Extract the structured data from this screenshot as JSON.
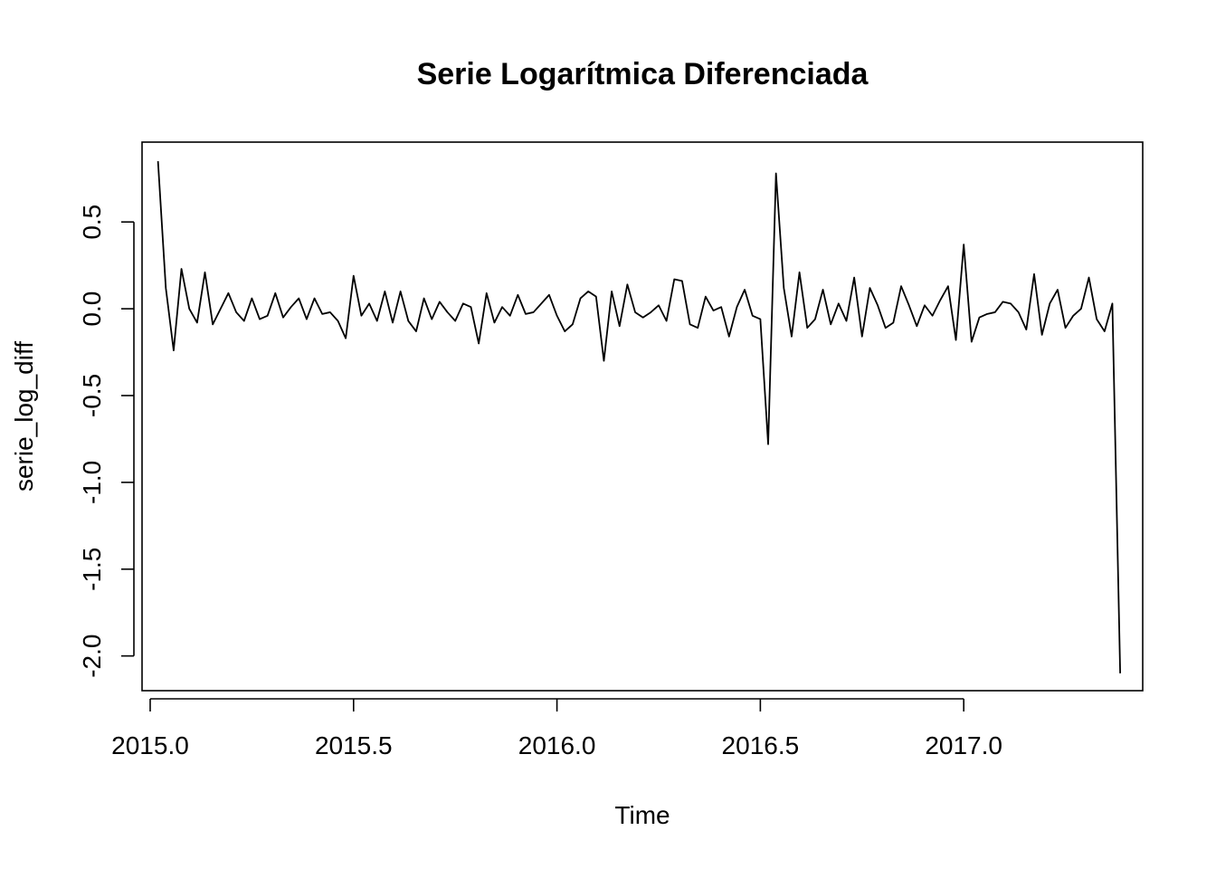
{
  "chart_data": {
    "type": "line",
    "title": "Serie Logarítmica Diferenciada",
    "xlabel": "Time",
    "ylabel": "serie_log_diff",
    "xlim": [
      2014.98,
      2017.44
    ],
    "ylim": [
      -2.2,
      0.96
    ],
    "x_ticks": [
      2015.0,
      2015.5,
      2016.0,
      2016.5,
      2017.0
    ],
    "x_tick_labels": [
      "2015.0",
      "2015.5",
      "2016.0",
      "2016.5",
      "2017.0"
    ],
    "y_ticks": [
      0.5,
      0.0,
      -0.5,
      -1.0,
      -1.5,
      -2.0
    ],
    "y_tick_labels": [
      "0.5",
      "0.0",
      "-0.5",
      "-1.0",
      "-1.5",
      "-2.0"
    ],
    "grid": false,
    "legend": "none",
    "line_color": "#000000",
    "x_start": 2015.0192,
    "x_step": 0.019231,
    "values": [
      0.85,
      0.12,
      -0.24,
      0.23,
      0.0,
      -0.08,
      0.21,
      -0.09,
      0.0,
      0.09,
      -0.02,
      -0.07,
      0.06,
      -0.06,
      -0.04,
      0.09,
      -0.05,
      0.01,
      0.06,
      -0.06,
      0.06,
      -0.03,
      -0.02,
      -0.07,
      -0.17,
      0.19,
      -0.04,
      0.03,
      -0.07,
      0.1,
      -0.08,
      0.1,
      -0.07,
      -0.13,
      0.06,
      -0.06,
      0.04,
      -0.02,
      -0.07,
      0.03,
      0.01,
      -0.2,
      0.09,
      -0.08,
      0.01,
      -0.04,
      0.08,
      -0.03,
      -0.02,
      0.03,
      0.08,
      -0.04,
      -0.13,
      -0.09,
      0.06,
      0.1,
      0.07,
      -0.3,
      0.1,
      -0.1,
      0.14,
      -0.02,
      -0.05,
      -0.02,
      0.02,
      -0.07,
      0.17,
      0.16,
      -0.09,
      -0.11,
      0.07,
      -0.01,
      0.01,
      -0.16,
      0.01,
      0.11,
      -0.04,
      -0.06,
      -0.78,
      0.78,
      0.12,
      -0.16,
      0.21,
      -0.11,
      -0.06,
      0.11,
      -0.09,
      0.03,
      -0.07,
      0.18,
      -0.16,
      0.12,
      0.02,
      -0.11,
      -0.08,
      0.13,
      0.02,
      -0.1,
      0.02,
      -0.04,
      0.05,
      0.13,
      -0.18,
      0.37,
      -0.19,
      -0.05,
      -0.03,
      -0.02,
      0.04,
      0.03,
      -0.02,
      -0.12,
      0.2,
      -0.15,
      0.03,
      0.11,
      -0.11,
      -0.04,
      0.0,
      0.18,
      -0.06,
      -0.13,
      0.03,
      -2.1
    ]
  }
}
